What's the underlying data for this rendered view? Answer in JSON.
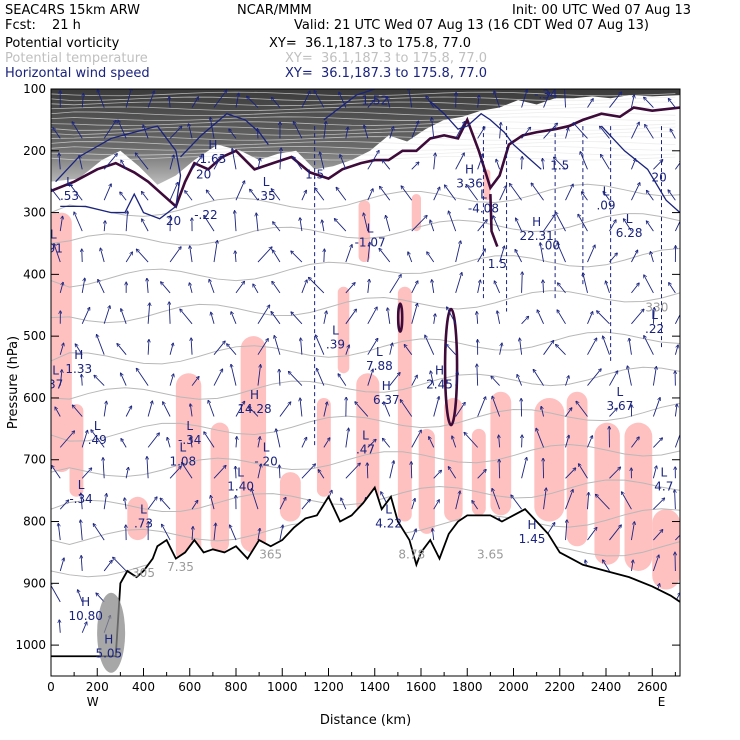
{
  "header": {
    "model": "SEAC4RS 15km ARW",
    "org": "NCAR/MMM",
    "init": "Init: 00 UTC Wed 07 Aug 13",
    "fcst_label": "Fcst:",
    "fcst_value": "21 h",
    "valid": "Valid: 21 UTC Wed 07 Aug 13 (16 CDT Wed 07 Aug 13)"
  },
  "fields": [
    {
      "name": "Potential vorticity",
      "xy": "XY=  36.1,187.3 to 175.8, 77.0",
      "color": "#000000"
    },
    {
      "name": "Potential temperature",
      "xy": "XY=  36.1,187.3 to 175.8, 77.0",
      "color": "#b8b8b8"
    },
    {
      "name": "Horizontal wind speed",
      "xy": "XY=  36.1,187.3 to 175.8, 77.0",
      "color": "#1a237e"
    }
  ],
  "chart_data": {
    "type": "cross-section",
    "xlabel": "Distance (km)",
    "ylabel": "Pressure (hPa)",
    "xlim": [
      0,
      2720
    ],
    "ylim": [
      1050,
      100
    ],
    "xticks": [
      "0",
      "200",
      "400",
      "600",
      "800",
      "1000",
      "1200",
      "1400",
      "1600",
      "1800",
      "2000",
      "2200",
      "2400",
      "2600"
    ],
    "yticks": [
      "100",
      "200",
      "300",
      "400",
      "500",
      "600",
      "700",
      "800",
      "900",
      "1000"
    ],
    "x_end_labels": {
      "left": "W",
      "right": "E"
    },
    "terrain": [
      [
        0,
        1018
      ],
      [
        280,
        1018
      ],
      [
        300,
        900
      ],
      [
        330,
        880
      ],
      [
        370,
        890
      ],
      [
        400,
        880
      ],
      [
        420,
        870
      ],
      [
        440,
        860
      ],
      [
        460,
        840
      ],
      [
        500,
        830
      ],
      [
        540,
        860
      ],
      [
        580,
        850
      ],
      [
        620,
        830
      ],
      [
        660,
        850
      ],
      [
        700,
        845
      ],
      [
        750,
        850
      ],
      [
        800,
        840
      ],
      [
        850,
        860
      ],
      [
        900,
        830
      ],
      [
        950,
        840
      ],
      [
        1000,
        830
      ],
      [
        1050,
        810
      ],
      [
        1100,
        795
      ],
      [
        1150,
        790
      ],
      [
        1200,
        760
      ],
      [
        1250,
        800
      ],
      [
        1300,
        790
      ],
      [
        1350,
        770
      ],
      [
        1400,
        745
      ],
      [
        1430,
        780
      ],
      [
        1470,
        760
      ],
      [
        1500,
        800
      ],
      [
        1550,
        830
      ],
      [
        1580,
        870
      ],
      [
        1600,
        850
      ],
      [
        1640,
        830
      ],
      [
        1680,
        860
      ],
      [
        1720,
        820
      ],
      [
        1760,
        800
      ],
      [
        1800,
        790
      ],
      [
        1850,
        790
      ],
      [
        1900,
        790
      ],
      [
        1950,
        800
      ],
      [
        2000,
        790
      ],
      [
        2050,
        780
      ],
      [
        2100,
        800
      ],
      [
        2150,
        820
      ],
      [
        2200,
        850
      ],
      [
        2250,
        860
      ],
      [
        2300,
        870
      ],
      [
        2400,
        880
      ],
      [
        2500,
        890
      ],
      [
        2600,
        905
      ],
      [
        2680,
        920
      ],
      [
        2720,
        930
      ]
    ],
    "wind_labels": [
      {
        "type": "H",
        "value": "1.63",
        "x": 700,
        "p": 210
      },
      {
        "type": "L",
        "value": ".35",
        "x": 930,
        "p": 270
      },
      {
        "type": "L",
        "value": "-1.07",
        "x": 1380,
        "p": 345
      },
      {
        "type": "H",
        "value": "3.36",
        "x": 1810,
        "p": 250
      },
      {
        "type": "H",
        "value": "22.31",
        "x": 2100,
        "p": 335
      },
      {
        "type": "L",
        "value": ".09",
        "x": 2400,
        "p": 285
      },
      {
        "type": "L",
        "value": "6.28",
        "x": 2500,
        "p": 330
      },
      {
        "type": "L",
        "value": ".39",
        "x": 1230,
        "p": 510
      },
      {
        "type": "L",
        "value": "7.88",
        "x": 1420,
        "p": 545
      },
      {
        "type": "H",
        "value": "2.45",
        "x": 1680,
        "p": 575
      },
      {
        "type": "H",
        "value": "6.37",
        "x": 1450,
        "p": 600
      },
      {
        "type": "H",
        "value": "1.33",
        "x": 120,
        "p": 550
      },
      {
        "type": "L",
        "value": "37",
        "x": 20,
        "p": 575
      },
      {
        "type": "H",
        "value": "14.28",
        "x": 880,
        "p": 615
      },
      {
        "type": "L",
        "value": "3.67",
        "x": 2460,
        "p": 610
      },
      {
        "type": "L",
        "value": ".49",
        "x": 200,
        "p": 665
      },
      {
        "type": "L",
        "value": "-.34",
        "x": 600,
        "p": 665
      },
      {
        "type": "L",
        "value": "1.08",
        "x": 570,
        "p": 700
      },
      {
        "type": "L",
        "value": ".47",
        "x": 1360,
        "p": 680
      },
      {
        "type": "L",
        "value": "-.20",
        "x": 930,
        "p": 700
      },
      {
        "type": "L",
        "value": "1.40",
        "x": 820,
        "p": 740
      },
      {
        "type": "L",
        "value": "-.34",
        "x": 130,
        "p": 760
      },
      {
        "type": "L",
        "value": ".73",
        "x": 400,
        "p": 800
      },
      {
        "type": "L",
        "value": "4.22",
        "x": 1460,
        "p": 800
      },
      {
        "type": "H",
        "value": "1.45",
        "x": 2080,
        "p": 825
      },
      {
        "type": "L",
        "value": "4.7",
        "x": 2650,
        "p": 740
      },
      {
        "type": "L",
        "value": ".22",
        "x": 2610,
        "p": 485
      },
      {
        "type": "H",
        "value": "10.80",
        "x": 150,
        "p": 950
      },
      {
        "type": "H",
        "value": "5.05",
        "x": 250,
        "p": 1010
      },
      {
        "type": "L",
        "value": ".53",
        "x": 80,
        "p": 270
      },
      {
        "type": "L",
        "value": ".91",
        "x": 10,
        "p": 355
      },
      {
        "type": "L",
        "value": "-4.08",
        "x": 1870,
        "p": 290
      }
    ],
    "wind_contour_labels": [
      {
        "value": "20",
        "x": 660,
        "p": 245
      },
      {
        "value": "20",
        "x": 530,
        "p": 320
      },
      {
        "value": "-.22",
        "x": 670,
        "p": 310
      },
      {
        "value": "1.5",
        "x": 1140,
        "p": 245
      },
      {
        "value": "1.5",
        "x": 2200,
        "p": 230
      },
      {
        "value": "20",
        "x": 2630,
        "p": 250
      },
      {
        "value": "1.5",
        "x": 1930,
        "p": 390
      },
      {
        "value": ".00",
        "x": 2160,
        "p": 360
      },
      {
        "value": "1.52",
        "x": 1400,
        "p": 125
      },
      {
        "value": "-.34",
        "x": 2140,
        "p": 115
      }
    ],
    "theta_labels": [
      {
        "value": "330",
        "x": 2620,
        "p": 460
      },
      {
        "value": "305",
        "x": 400,
        "p": 890
      },
      {
        "value": "365",
        "x": 950,
        "p": 860
      },
      {
        "value": "3.65",
        "x": 1900,
        "p": 860
      },
      {
        "value": "8.78",
        "x": 1560,
        "p": 860
      },
      {
        "value": "7.35",
        "x": 560,
        "p": 880
      }
    ]
  }
}
